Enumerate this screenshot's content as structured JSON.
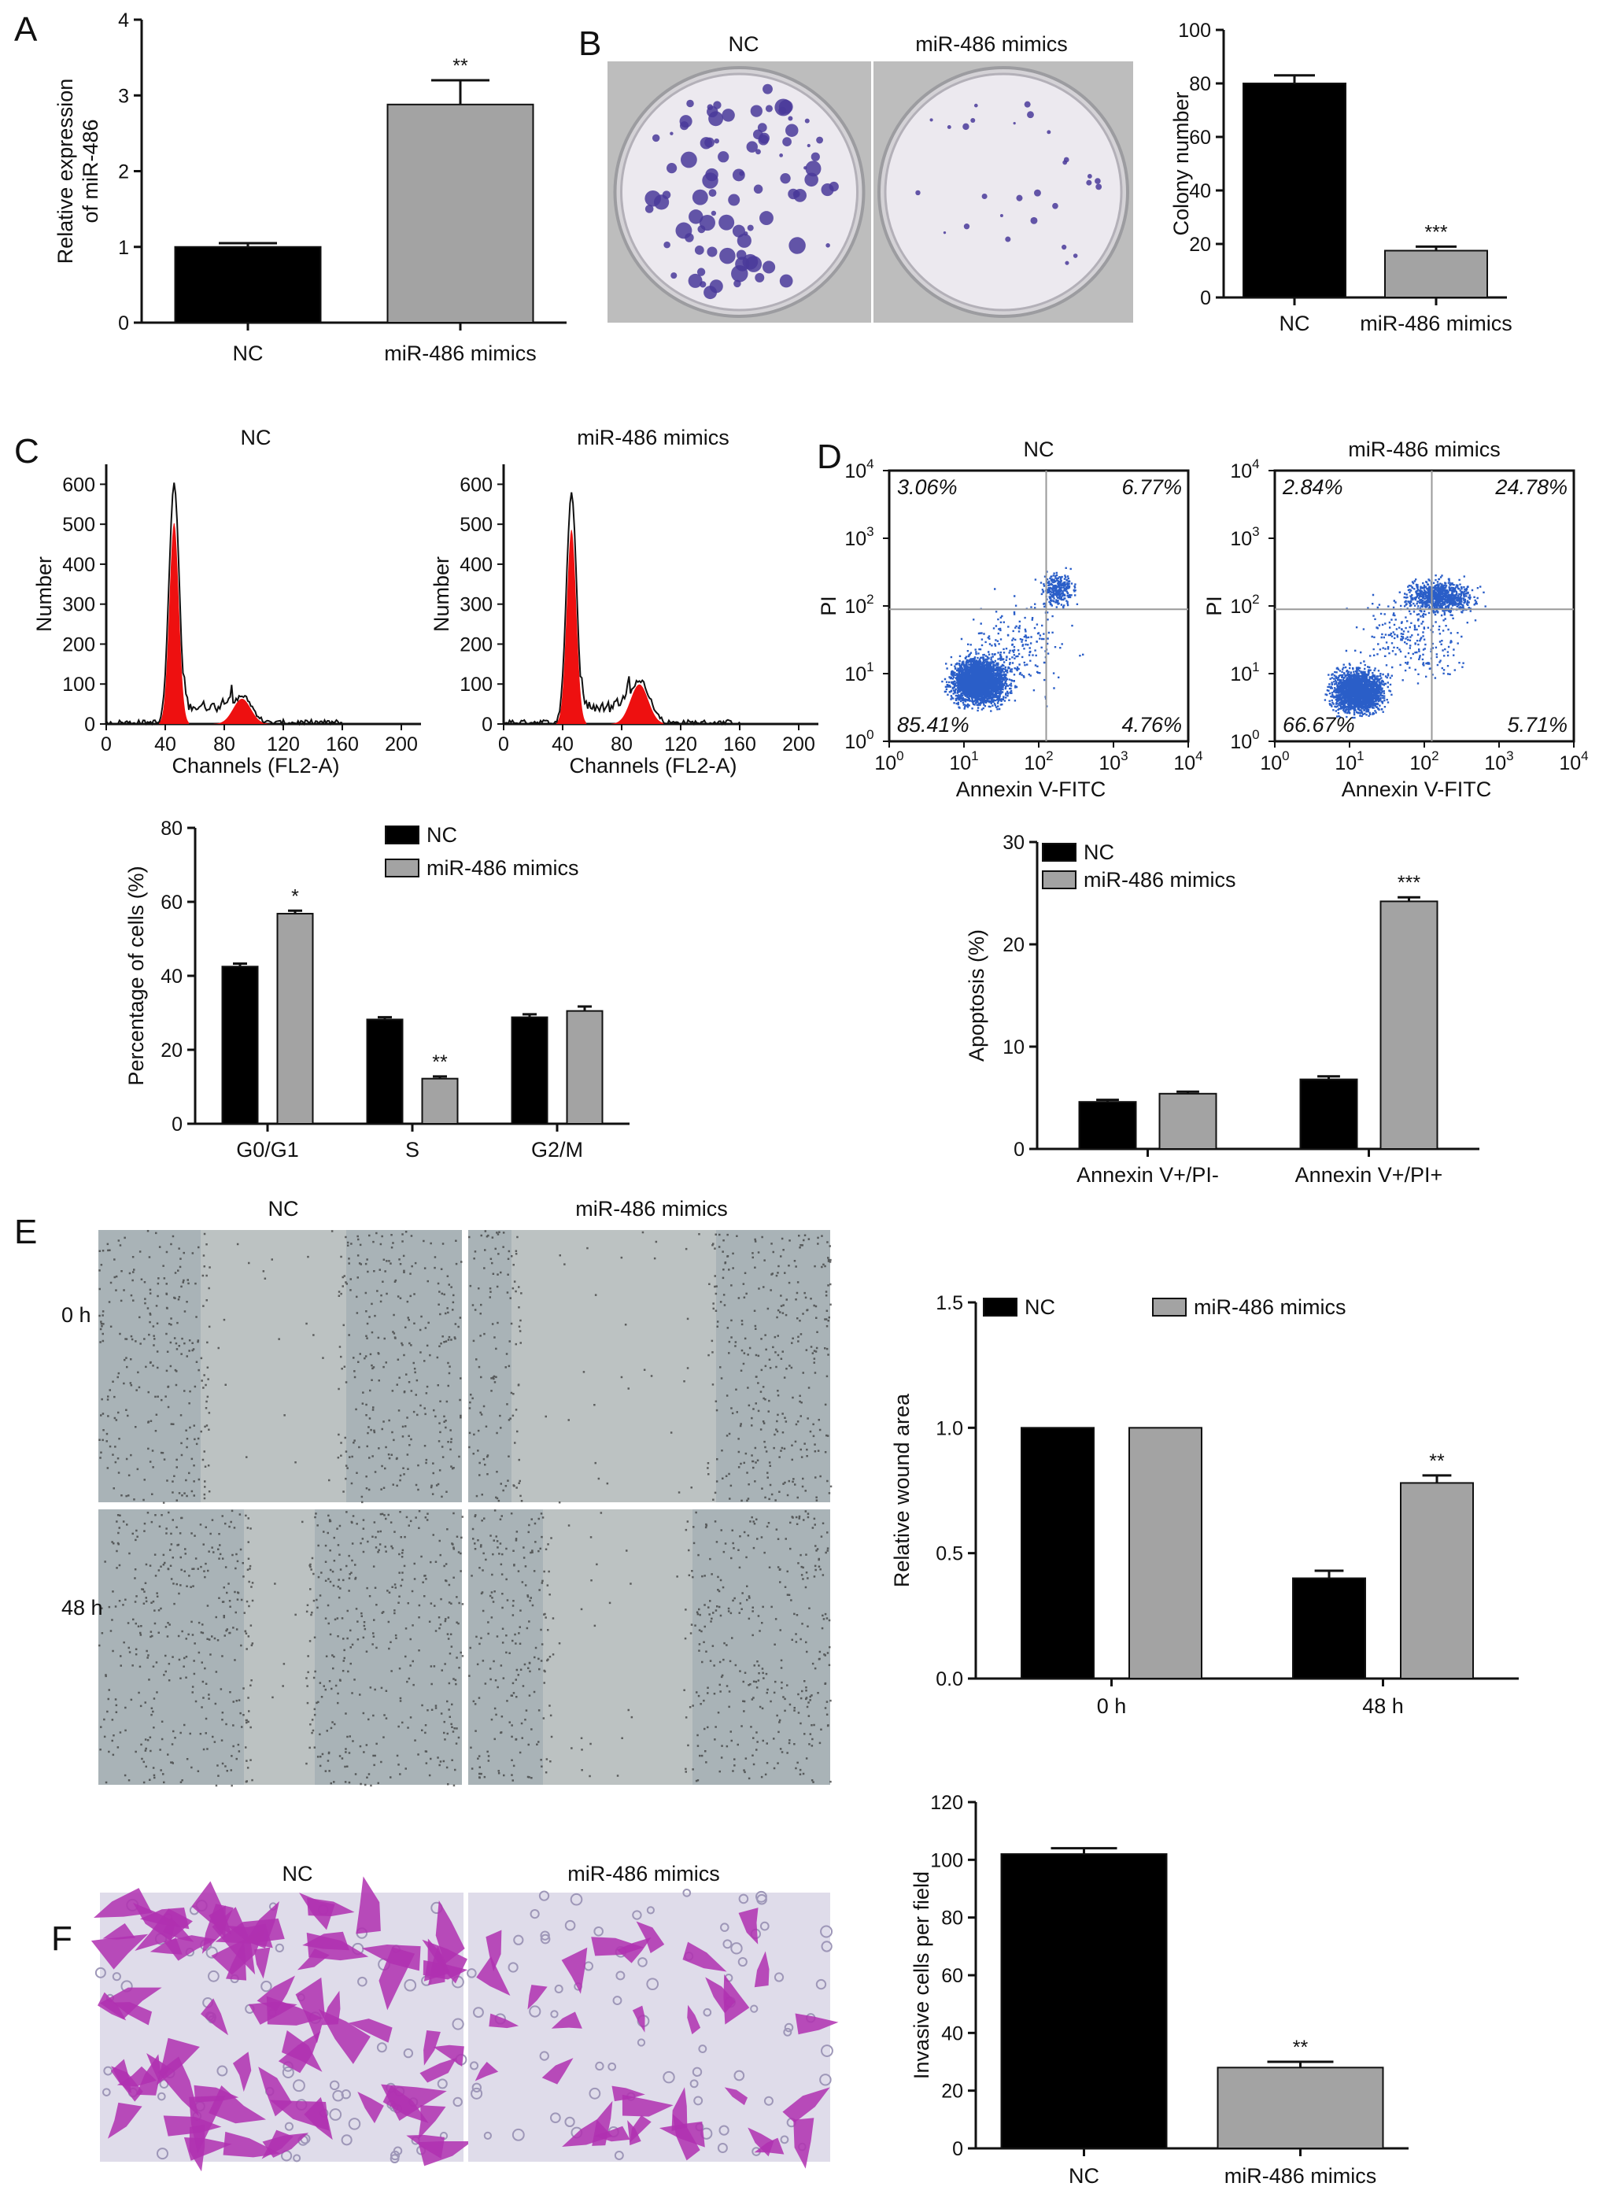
{
  "panels": {
    "A": {
      "letter": "A"
    },
    "B": {
      "letter": "B",
      "photo_labels": [
        "NC",
        "miR-486 mimics"
      ]
    },
    "C": {
      "letter": "C",
      "titles": [
        "NC",
        "miR-486 mimics"
      ],
      "xlabel": "Channels (FL2-A)",
      "ylabel": "Number"
    },
    "D": {
      "letter": "D",
      "titles": [
        "NC",
        "miR-486 mimics"
      ],
      "xlabel": "Annexin V-FITC",
      "ylabel": "PI"
    },
    "E": {
      "letter": "E",
      "photo_labels": [
        "NC",
        "miR-486 mimics"
      ],
      "row_labels": [
        "0 h",
        "48 h"
      ]
    },
    "F": {
      "letter": "F",
      "photo_labels": [
        "NC",
        "miR-486 mimics"
      ]
    }
  },
  "colors": {
    "nc": "#000000",
    "mimic": "#a3a3a3",
    "histogram_fill": "#ee1010",
    "dots": "#2a5ec8",
    "colony_stain": "#4a3a9a",
    "cell_stain": "#b030b0"
  },
  "chart_data": [
    {
      "id": "A",
      "type": "bar",
      "categories": [
        "NC",
        "miR-486 mimics"
      ],
      "values": [
        1.0,
        2.88
      ],
      "errors": [
        0.05,
        0.32
      ],
      "significance": [
        "",
        "**"
      ],
      "ylabel": "Relative expression of miR-486",
      "ylabel_lines": [
        "Relative expression",
        "of miR-486"
      ],
      "ylim": [
        0,
        4
      ],
      "yticks": [
        0,
        1,
        2,
        3,
        4
      ]
    },
    {
      "id": "B",
      "type": "bar",
      "categories": [
        "NC",
        "miR-486 mimics"
      ],
      "values": [
        80,
        17.5
      ],
      "errors": [
        3,
        1.5
      ],
      "significance": [
        "",
        "***"
      ],
      "ylabel": "Colony number",
      "ylim": [
        0,
        100
      ],
      "yticks": [
        0,
        20,
        40,
        60,
        80,
        100
      ]
    },
    {
      "id": "C-hist",
      "type": "area",
      "titles": [
        "NC",
        "miR-486 mimics"
      ],
      "xlabel": "Channels (FL2-A)",
      "ylabel": "Number",
      "xlim": [
        0,
        200
      ],
      "ylim": [
        0,
        650
      ],
      "xticks": [
        0,
        40,
        80,
        120,
        160,
        200
      ],
      "yticks": [
        0,
        100,
        200,
        300,
        400,
        500,
        600
      ],
      "series": [
        {
          "G1_peak": [
            46,
            600
          ],
          "G2_peak": [
            92,
            70
          ]
        },
        {
          "G1_peak": [
            46,
            580
          ],
          "G2_peak": [
            92,
            110
          ]
        }
      ]
    },
    {
      "id": "C-bar",
      "type": "bar",
      "categories": [
        "G0/G1",
        "S",
        "G2/M"
      ],
      "series": [
        {
          "name": "NC",
          "values": [
            42.5,
            28.2,
            28.8
          ],
          "errors": [
            0.8,
            0.6,
            0.8
          ]
        },
        {
          "name": "miR-486 mimics",
          "values": [
            56.8,
            12.2,
            30.5
          ],
          "errors": [
            0.8,
            0.6,
            1.2
          ]
        }
      ],
      "significance": [
        "*",
        "**",
        ""
      ],
      "ylabel": "Percentage of cells (%)",
      "ylim": [
        0,
        80
      ],
      "yticks": [
        0,
        20,
        40,
        60,
        80
      ],
      "legend": "top-right"
    },
    {
      "id": "D-flow",
      "type": "scatter",
      "titles": [
        "NC",
        "miR-486 mimics"
      ],
      "xlabel": "Annexin V-FITC",
      "ylabel": "PI",
      "xscale": "log",
      "yscale": "log",
      "xlim": [
        1,
        10000
      ],
      "ylim": [
        1,
        10000
      ],
      "quadrants": [
        {
          "UL": "3.06%",
          "UR": "6.77%",
          "LL": "85.41%",
          "LR": "4.76%"
        },
        {
          "UL": "2.84%",
          "UR": "24.78%",
          "LL": "66.67%",
          "LR": "5.71%"
        }
      ]
    },
    {
      "id": "D-bar",
      "type": "bar",
      "categories": [
        "Annexin V+/PI-",
        "Annexin V+/PI+"
      ],
      "series": [
        {
          "name": "NC",
          "values": [
            4.6,
            6.8
          ],
          "errors": [
            0.2,
            0.3
          ]
        },
        {
          "name": "miR-486 mimics",
          "values": [
            5.4,
            24.2
          ],
          "errors": [
            0.2,
            0.4
          ]
        }
      ],
      "significance": [
        "",
        "***"
      ],
      "ylabel": "Apoptosis (%)",
      "ylim": [
        0,
        30
      ],
      "yticks": [
        0,
        10,
        20,
        30
      ],
      "legend": "top-left"
    },
    {
      "id": "E",
      "type": "bar",
      "categories": [
        "0 h",
        "48 h"
      ],
      "series": [
        {
          "name": "NC",
          "values": [
            1.0,
            0.4
          ],
          "errors": [
            0.0,
            0.03
          ]
        },
        {
          "name": "miR-486 mimics",
          "values": [
            1.0,
            0.78
          ],
          "errors": [
            0.0,
            0.03
          ]
        }
      ],
      "significance": [
        "",
        "**"
      ],
      "ylabel": "Relative wound area",
      "ylim": [
        0,
        1.5
      ],
      "yticks": [
        0.0,
        0.5,
        1.0,
        1.5
      ],
      "ytick_labels": [
        "0.0",
        "0.5",
        "1.0",
        "1.5"
      ],
      "legend": "top"
    },
    {
      "id": "F",
      "type": "bar",
      "categories": [
        "NC",
        "miR-486 mimics"
      ],
      "values": [
        102,
        28
      ],
      "errors": [
        2,
        2
      ],
      "significance": [
        "",
        "**"
      ],
      "ylabel": "Invasive cells per field",
      "ylim": [
        0,
        120
      ],
      "yticks": [
        0,
        20,
        40,
        60,
        80,
        100,
        120
      ]
    }
  ]
}
